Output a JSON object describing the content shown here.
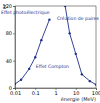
{
  "chart_data": {
    "type": "line",
    "x_label": "énergie (MeV)",
    "y_label": "Z",
    "log": "x",
    "grid": false,
    "xlim": [
      0.01,
      100
    ],
    "xticks": [
      0.01,
      0.1,
      1,
      10,
      100
    ],
    "ylim": [
      0,
      120
    ],
    "yticks": [
      0,
      40,
      80,
      120
    ],
    "series": [
      {
        "color": "#1f2f8a",
        "marker": "circle",
        "line_style": "solid",
        "x": [
          0.01,
          0.02,
          0.05,
          0.1,
          0.2,
          0.5
        ],
        "values": [
          6,
          12,
          28,
          45,
          70,
          100
        ]
      },
      {
        "color": "#1f2f8a",
        "marker": "circle",
        "line_style": "solid",
        "x": [
          3,
          5,
          10,
          20,
          50,
          100
        ],
        "values": [
          120,
          80,
          50,
          20,
          10,
          5
        ]
      }
    ],
    "annotations": [
      {
        "text": "Effet photoélectrique",
        "x": 0.03,
        "y": 108
      },
      {
        "text": "Effet Compton",
        "x": 0.7,
        "y": 30
      },
      {
        "text": "Création de paires",
        "x": 30,
        "y": 100
      }
    ]
  }
}
